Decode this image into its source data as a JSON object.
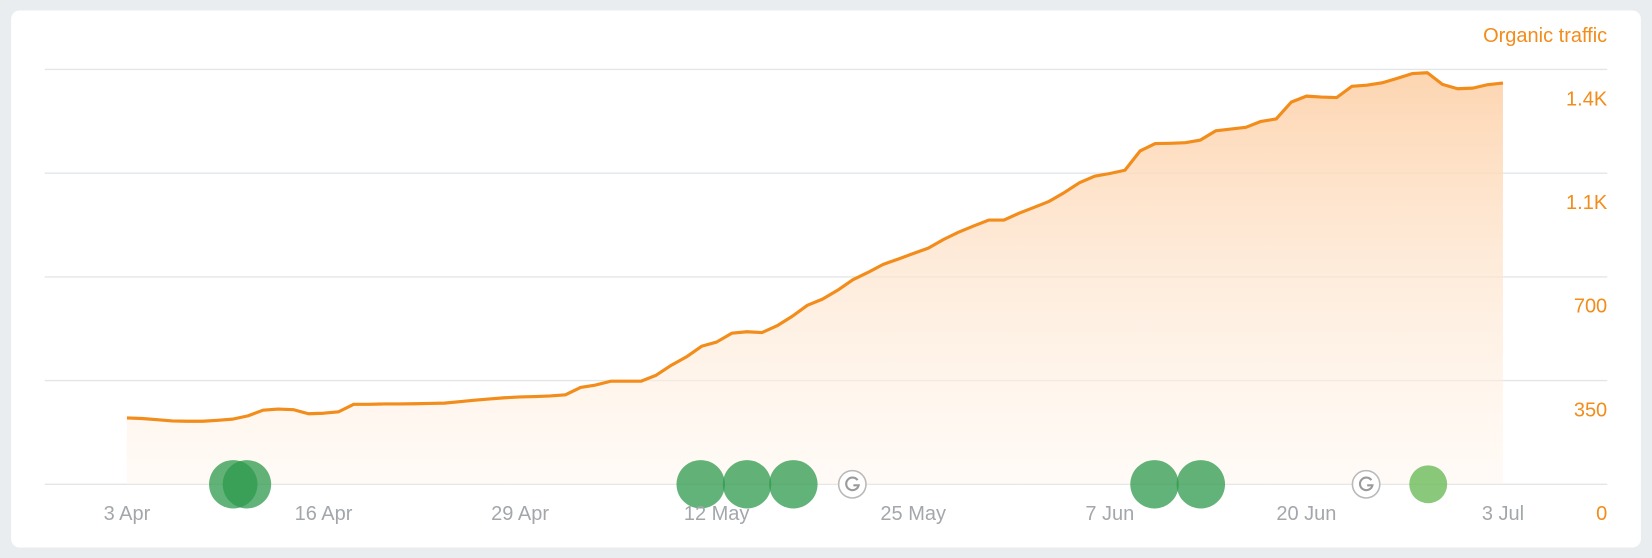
{
  "chart_data": {
    "type": "area",
    "series": [
      {
        "name": "Organic traffic",
        "color": "#f28c1a",
        "values": [
          224,
          222,
          218,
          214,
          213,
          213,
          216,
          220,
          231,
          250,
          254,
          252,
          238,
          240,
          245,
          270,
          270,
          271,
          271,
          272,
          273,
          274,
          279,
          284,
          288,
          292,
          295,
          296,
          298,
          302,
          327,
          335,
          348,
          348,
          348,
          368,
          402,
          430,
          466,
          480,
          510,
          515,
          512,
          535,
          567,
          604,
          625,
          655,
          690,
          715,
          742,
          760,
          779,
          797,
          826,
          851,
          872,
          892,
          892,
          915,
          935,
          955,
          985,
          1018,
          1040,
          1049,
          1060,
          1125,
          1150,
          1151,
          1153,
          1162,
          1193,
          1199,
          1205,
          1225,
          1233,
          1290,
          1310,
          1307,
          1305,
          1343,
          1347,
          1355,
          1370,
          1386,
          1389,
          1350,
          1335,
          1337,
          1349,
          1354
        ]
      }
    ],
    "categories": [
      "3 Apr",
      null,
      null,
      null,
      null,
      null,
      null,
      null,
      null,
      null,
      null,
      null,
      null,
      "16 Apr",
      null,
      null,
      null,
      null,
      null,
      null,
      null,
      null,
      null,
      null,
      null,
      null,
      "29 Apr",
      null,
      null,
      null,
      null,
      null,
      null,
      null,
      null,
      null,
      null,
      null,
      null,
      "12 May",
      null,
      null,
      null,
      null,
      null,
      null,
      null,
      null,
      null,
      null,
      null,
      null,
      "25 May",
      null,
      null,
      null,
      null,
      null,
      null,
      null,
      null,
      null,
      null,
      null,
      null,
      "7 Jun",
      null,
      null,
      null,
      null,
      null,
      null,
      null,
      null,
      null,
      null,
      null,
      null,
      "20 Jun",
      null,
      null,
      null,
      null,
      null,
      null,
      null,
      null,
      null,
      null,
      null,
      null,
      "3 Jul"
    ],
    "ylim": [
      0,
      1400
    ],
    "yticks": [
      0,
      350,
      700,
      {
        "value": 1050,
        "label": "1.1K"
      },
      {
        "value": 1400,
        "label": "1.4K"
      }
    ],
    "grid": true
  }
}
